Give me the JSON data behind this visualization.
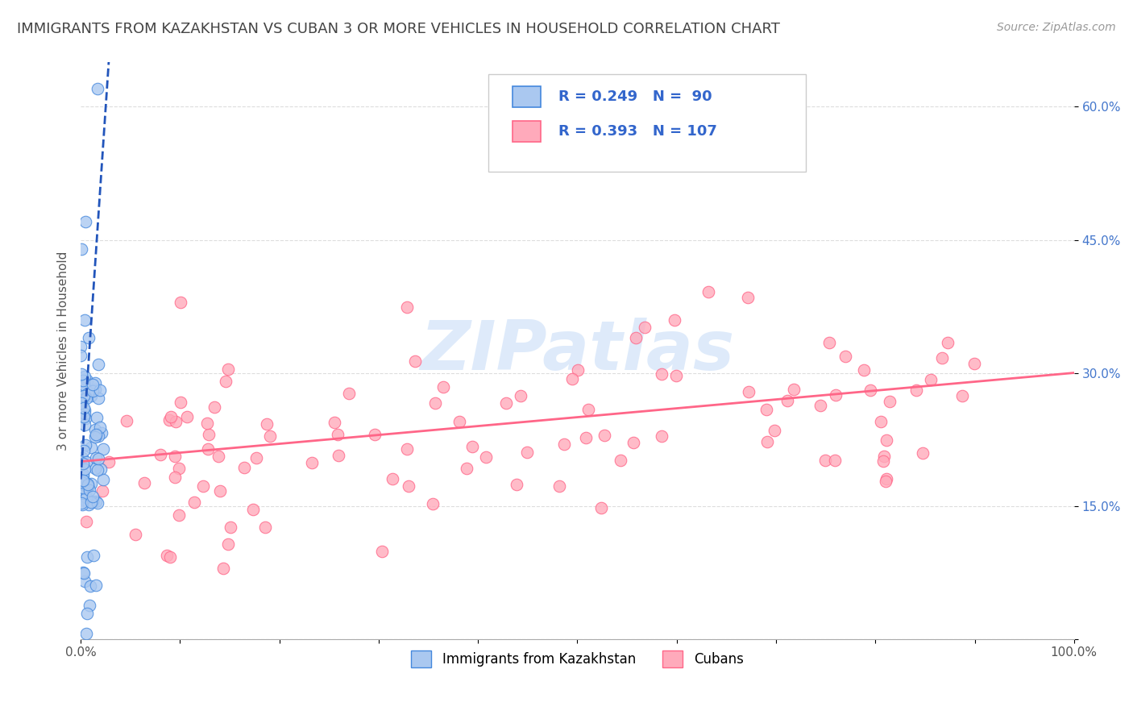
{
  "title": "IMMIGRANTS FROM KAZAKHSTAN VS CUBAN 3 OR MORE VEHICLES IN HOUSEHOLD CORRELATION CHART",
  "source": "Source: ZipAtlas.com",
  "ylabel": "3 or more Vehicles in Household",
  "legend_bottom": [
    "Immigrants from Kazakhstan",
    "Cubans"
  ],
  "series1": {
    "name": "Immigrants from Kazakhstan",
    "color": "#aac8f0",
    "edge_color": "#4488dd",
    "R": 0.249,
    "N": 90,
    "trend_color": "#2255bb",
    "trend_style": "--"
  },
  "series2": {
    "name": "Cubans",
    "color": "#ffaabb",
    "edge_color": "#ff6688",
    "R": 0.393,
    "N": 107,
    "trend_color": "#ff6688",
    "trend_style": "-"
  },
  "xlim": [
    0.0,
    100.0
  ],
  "ylim": [
    0.0,
    65.0
  ],
  "xtick_positions": [
    0.0,
    10.0,
    20.0,
    30.0,
    40.0,
    50.0,
    60.0,
    70.0,
    80.0,
    90.0,
    100.0
  ],
  "xtick_labels_shown": {
    "0.0": "0.0%",
    "100.0": "100.0%"
  },
  "ytick_positions": [
    0.0,
    15.0,
    30.0,
    45.0,
    60.0
  ],
  "ytick_labels": [
    "",
    "15.0%",
    "30.0%",
    "45.0%",
    "60.0%"
  ],
  "background_color": "#ffffff",
  "watermark": "ZIPatlas",
  "watermark_color": "#c8ddf8",
  "title_fontsize": 13,
  "axis_label_fontsize": 11,
  "tick_fontsize": 11,
  "legend_fontsize": 13,
  "stat_color": "#3366cc",
  "grid_color": "#dddddd",
  "grid_style": "--"
}
